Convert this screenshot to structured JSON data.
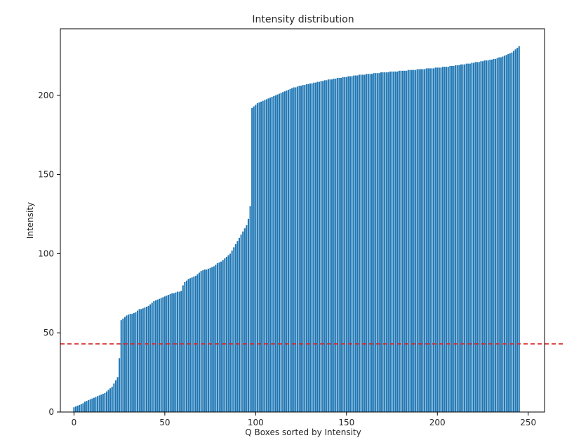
{
  "chart_data": {
    "type": "bar",
    "title": "Intensity distribution",
    "xlabel": "Q Boxes sorted by Intensity",
    "ylabel": "Intensity",
    "xlim": [
      -7.5,
      259
    ],
    "ylim": [
      0,
      242
    ],
    "xticks": [
      0,
      50,
      100,
      150,
      200,
      250
    ],
    "yticks": [
      0,
      50,
      100,
      150,
      200
    ],
    "grid": false,
    "bar_color": "#1f77b4",
    "threshold": {
      "value": 43,
      "color": "#d62728",
      "style": "dashed"
    },
    "values": [
      3,
      3.5,
      4,
      4.5,
      5,
      5.5,
      6.5,
      7,
      7.5,
      8,
      8.5,
      9,
      9.5,
      10,
      10.5,
      11,
      11.5,
      12,
      13,
      14,
      15,
      16,
      18,
      20,
      22,
      34,
      58,
      59,
      60,
      61,
      61.5,
      62,
      62,
      62.5,
      63,
      64,
      65,
      65,
      65.5,
      66,
      66.5,
      67,
      68,
      69,
      70,
      70.5,
      71,
      71.5,
      72,
      72.5,
      73,
      73.5,
      74,
      74.5,
      75,
      75,
      75.5,
      76,
      76,
      76.5,
      80,
      82,
      83,
      84,
      84.5,
      85,
      85.5,
      86,
      87,
      88,
      89,
      89.5,
      90,
      90,
      90.5,
      91,
      91.5,
      92,
      93,
      94,
      94.5,
      95,
      96,
      97,
      98,
      99,
      100,
      102,
      104,
      106,
      108,
      110,
      112,
      114,
      116,
      118,
      122,
      130,
      192,
      193,
      194,
      195,
      195.5,
      196,
      196.5,
      197,
      197.5,
      198,
      198.5,
      199,
      199.5,
      200,
      200.5,
      201,
      201.5,
      202,
      202.5,
      203,
      203.5,
      204,
      204.5,
      205,
      205,
      205.5,
      206,
      206,
      206.5,
      206.5,
      207,
      207,
      207.5,
      207.5,
      208,
      208,
      208.5,
      208.5,
      209,
      209,
      209.5,
      209.5,
      210,
      210,
      210,
      210.5,
      210.5,
      211,
      211,
      211,
      211.5,
      211.5,
      211.5,
      212,
      212,
      212,
      212.5,
      212.5,
      212.5,
      213,
      213,
      213,
      213,
      213.5,
      213.5,
      213.5,
      213.5,
      214,
      214,
      214,
      214,
      214.5,
      214.5,
      214.5,
      214.5,
      214.5,
      215,
      215,
      215,
      215,
      215,
      215.5,
      215.5,
      215.5,
      215.5,
      215.5,
      216,
      216,
      216,
      216,
      216,
      216.5,
      216.5,
      216.5,
      216.5,
      216.5,
      217,
      217,
      217,
      217,
      217,
      217.5,
      217.5,
      217.5,
      217.5,
      218,
      218,
      218,
      218,
      218.5,
      218.5,
      218.5,
      219,
      219,
      219,
      219.5,
      219.5,
      219.5,
      220,
      220,
      220,
      220.5,
      220.5,
      221,
      221,
      221,
      221.5,
      221.5,
      222,
      222,
      222,
      222.5,
      222.5,
      223,
      223,
      223.5,
      224,
      224,
      224.5,
      225,
      225.5,
      226,
      226.5,
      227,
      228,
      229,
      230,
      231
    ]
  }
}
